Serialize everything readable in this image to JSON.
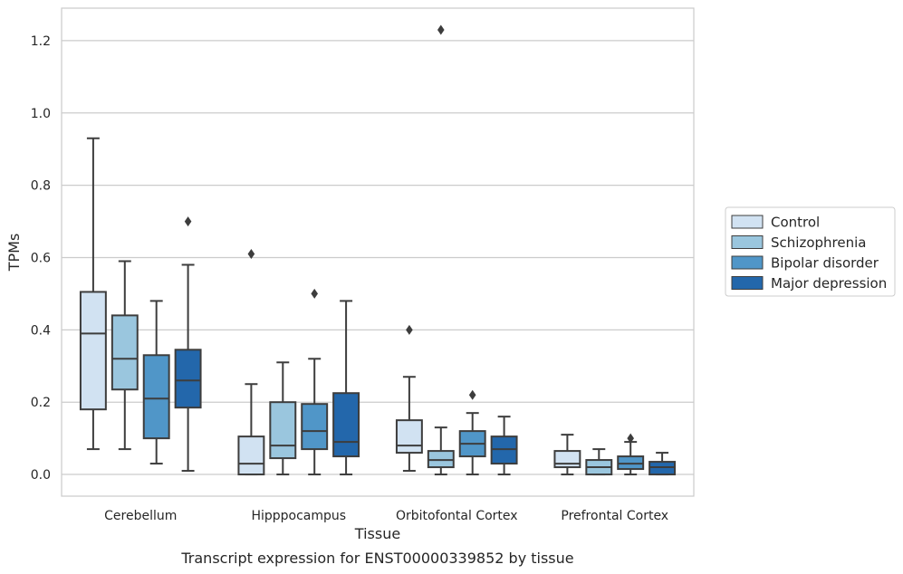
{
  "chart_data": {
    "type": "box",
    "title": "",
    "caption": "Transcript expression for ENST00000339852 by tissue",
    "xlabel": "Tissue",
    "ylabel": "TPMs",
    "ylim": [
      -0.06,
      1.29
    ],
    "yticks": [
      0.0,
      0.2,
      0.4,
      0.6,
      0.8,
      1.0,
      1.2
    ],
    "ytick_labels": [
      "0.0",
      "0.2",
      "0.4",
      "0.6",
      "0.8",
      "1.0",
      "1.2"
    ],
    "grid": "horizontal",
    "legend_position": "right",
    "categories": [
      "Cerebellum",
      "Hipppocampus",
      "Orbitofontal Cortex",
      "Prefrontal Cortex"
    ],
    "series": [
      {
        "name": "Control",
        "color": "#d1e2f2",
        "boxes": [
          {
            "whislo": 0.07,
            "q1": 0.18,
            "med": 0.39,
            "q3": 0.505,
            "whishi": 0.93,
            "fliers": []
          },
          {
            "whislo": 0.0,
            "q1": 0.0,
            "med": 0.03,
            "q3": 0.105,
            "whishi": 0.25,
            "fliers": [
              0.61
            ]
          },
          {
            "whislo": 0.01,
            "q1": 0.06,
            "med": 0.08,
            "q3": 0.15,
            "whishi": 0.27,
            "fliers": [
              0.4
            ]
          },
          {
            "whislo": 0.0,
            "q1": 0.02,
            "med": 0.03,
            "q3": 0.065,
            "whishi": 0.11,
            "fliers": []
          }
        ]
      },
      {
        "name": "Schizophrenia",
        "color": "#9ac6de",
        "boxes": [
          {
            "whislo": 0.07,
            "q1": 0.235,
            "med": 0.32,
            "q3": 0.44,
            "whishi": 0.59,
            "fliers": []
          },
          {
            "whislo": 0.0,
            "q1": 0.045,
            "med": 0.08,
            "q3": 0.2,
            "whishi": 0.31,
            "fliers": []
          },
          {
            "whislo": 0.0,
            "q1": 0.02,
            "med": 0.04,
            "q3": 0.065,
            "whishi": 0.13,
            "fliers": [
              1.23
            ]
          },
          {
            "whislo": 0.0,
            "q1": 0.0,
            "med": 0.02,
            "q3": 0.04,
            "whishi": 0.07,
            "fliers": []
          }
        ]
      },
      {
        "name": "Bipolar disorder",
        "color": "#5096c8",
        "boxes": [
          {
            "whislo": 0.03,
            "q1": 0.1,
            "med": 0.21,
            "q3": 0.33,
            "whishi": 0.48,
            "fliers": []
          },
          {
            "whislo": 0.0,
            "q1": 0.07,
            "med": 0.12,
            "q3": 0.195,
            "whishi": 0.32,
            "fliers": [
              0.5
            ]
          },
          {
            "whislo": 0.0,
            "q1": 0.05,
            "med": 0.085,
            "q3": 0.12,
            "whishi": 0.17,
            "fliers": [
              0.22
            ]
          },
          {
            "whislo": 0.0,
            "q1": 0.015,
            "med": 0.03,
            "q3": 0.05,
            "whishi": 0.09,
            "fliers": [
              0.1
            ]
          }
        ]
      },
      {
        "name": "Major depression",
        "color": "#2367ab",
        "boxes": [
          {
            "whislo": 0.01,
            "q1": 0.185,
            "med": 0.26,
            "q3": 0.345,
            "whishi": 0.58,
            "fliers": [
              0.7
            ]
          },
          {
            "whislo": 0.0,
            "q1": 0.05,
            "med": 0.09,
            "q3": 0.225,
            "whishi": 0.48,
            "fliers": []
          },
          {
            "whislo": 0.0,
            "q1": 0.03,
            "med": 0.07,
            "q3": 0.105,
            "whishi": 0.16,
            "fliers": []
          },
          {
            "whislo": 0.0,
            "q1": 0.0,
            "med": 0.02,
            "q3": 0.035,
            "whishi": 0.06,
            "fliers": []
          }
        ]
      }
    ]
  }
}
